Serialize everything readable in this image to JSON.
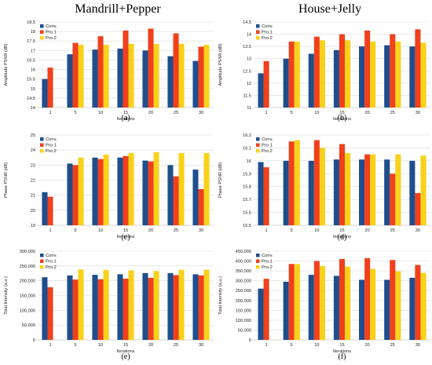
{
  "figure": {
    "columns": [
      "Mandrill+Pepper",
      "House+Jelly"
    ]
  },
  "colors": {
    "Conv.": "#1f4e8c",
    "Pro.1": "#f0401c",
    "Pro.2": "#f9d11a"
  },
  "chart_data": [
    {
      "type": "bar",
      "panel": "(a)",
      "categories": [
        "1",
        "5",
        "10",
        "15",
        "20",
        "25",
        "30"
      ],
      "xlabel": "Iterations",
      "ylabel": "Amplitude PSNR (dB)",
      "ylim": [
        14,
        18.5
      ],
      "yticks": [
        "14",
        "14.5",
        "15",
        "15.5",
        "16",
        "16.5",
        "17",
        "17.5",
        "18",
        "18.5"
      ],
      "grid": true,
      "legend": "top-left",
      "series": [
        {
          "name": "Conv.",
          "values": [
            15.5,
            16.8,
            17.05,
            17.1,
            17.0,
            16.7,
            16.45
          ]
        },
        {
          "name": "Pro.1",
          "values": [
            16.1,
            17.4,
            17.75,
            18.05,
            18.15,
            17.9,
            17.2
          ]
        },
        {
          "name": "Pro.2",
          "values": [
            null,
            17.3,
            17.3,
            17.35,
            17.35,
            17.35,
            17.3
          ]
        }
      ]
    },
    {
      "type": "bar",
      "panel": "(b)",
      "categories": [
        "1",
        "5",
        "10",
        "15",
        "20",
        "25",
        "30"
      ],
      "xlabel": "Iterations",
      "ylabel": "Amplitude PSNR (dB)",
      "ylim": [
        11,
        14.5
      ],
      "yticks": [
        "11",
        "11.5",
        "12",
        "12.5",
        "13",
        "13.5",
        "14",
        "14.5"
      ],
      "grid": true,
      "legend": "top-left",
      "series": [
        {
          "name": "Conv.",
          "values": [
            12.4,
            13.0,
            13.2,
            13.35,
            13.5,
            13.55,
            13.5
          ]
        },
        {
          "name": "Pro.1",
          "values": [
            12.9,
            13.7,
            13.9,
            14.0,
            14.15,
            14.0,
            14.2
          ]
        },
        {
          "name": "Pro.2",
          "values": [
            null,
            13.7,
            13.75,
            13.75,
            13.7,
            13.7,
            13.65
          ]
        }
      ]
    },
    {
      "type": "bar",
      "panel": "(c)",
      "categories": [
        "1",
        "5",
        "10",
        "15",
        "20",
        "25",
        "30"
      ],
      "xlabel": "Iterations",
      "ylabel": "Phase PSNR (dB)",
      "ylim": [
        19,
        25
      ],
      "yticks": [
        "19",
        "20",
        "21",
        "22",
        "23",
        "24",
        "25"
      ],
      "grid": true,
      "legend": "top-left",
      "series": [
        {
          "name": "Conv.",
          "values": [
            21.2,
            23.1,
            23.5,
            23.5,
            23.3,
            23.0,
            22.7
          ]
        },
        {
          "name": "Pro.1",
          "values": [
            20.9,
            23.0,
            23.4,
            23.6,
            23.25,
            22.25,
            21.4
          ]
        },
        {
          "name": "Pro.2",
          "values": [
            null,
            23.5,
            23.7,
            23.8,
            23.85,
            23.8,
            23.8
          ]
        }
      ]
    },
    {
      "type": "bar",
      "panel": "(d)",
      "categories": [
        "1",
        "5",
        "10",
        "15",
        "20",
        "25",
        "30"
      ],
      "xlabel": "Iterations",
      "ylabel": "Phase PSNR (dB)",
      "ylim": [
        15.5,
        16.2
      ],
      "yticks": [
        "15.5",
        "15.6",
        "15.7",
        "15.8",
        "15.9",
        "16",
        "16.1",
        "16.2"
      ],
      "grid": true,
      "legend": "top-left",
      "series": [
        {
          "name": "Conv.",
          "values": [
            15.99,
            16.0,
            16.0,
            16.01,
            16.01,
            16.01,
            16.0
          ]
        },
        {
          "name": "Pro.1",
          "values": [
            15.95,
            16.15,
            16.16,
            16.13,
            16.05,
            15.9,
            15.75
          ]
        },
        {
          "name": "Pro.2",
          "values": [
            null,
            16.16,
            16.1,
            16.06,
            16.05,
            16.05,
            16.04
          ]
        }
      ]
    },
    {
      "type": "bar",
      "panel": "(e)",
      "categories": [
        "1",
        "5",
        "10",
        "15",
        "20",
        "25",
        "30"
      ],
      "xlabel": "Iterations",
      "ylabel": "Total Intensity (a.u.)",
      "ylim": [
        0,
        300000
      ],
      "yticks": [
        "0",
        "50,000",
        "100,000",
        "150,000",
        "200,000",
        "250,000",
        "300,000"
      ],
      "grid": true,
      "legend": "top-left",
      "series": [
        {
          "name": "Conv.",
          "values": [
            212000,
            218000,
            220000,
            222000,
            226000,
            226000,
            222000
          ]
        },
        {
          "name": "Pro.1",
          "values": [
            178000,
            204000,
            205000,
            207000,
            210000,
            219000,
            218000
          ]
        },
        {
          "name": "Pro.2",
          "values": [
            null,
            238000,
            236000,
            235000,
            233000,
            237000,
            237000
          ]
        }
      ]
    },
    {
      "type": "bar",
      "panel": "(f)",
      "categories": [
        "1",
        "5",
        "10",
        "15",
        "20",
        "25",
        "30"
      ],
      "xlabel": "Iterations",
      "ylabel": "Total Intensity (a.u.)",
      "ylim": [
        0,
        450000
      ],
      "yticks": [
        "0",
        "50,000",
        "100,000",
        "150,000",
        "200,000",
        "250,000",
        "300,000",
        "350,000",
        "400,000",
        "450,000"
      ],
      "grid": true,
      "legend": "top-left",
      "series": [
        {
          "name": "Conv.",
          "values": [
            260000,
            295000,
            330000,
            325000,
            305000,
            305000,
            315000
          ]
        },
        {
          "name": "Pro.1",
          "values": [
            310000,
            385000,
            400000,
            410000,
            415000,
            405000,
            380000
          ]
        },
        {
          "name": "Pro.2",
          "values": [
            null,
            385000,
            375000,
            372000,
            360000,
            348000,
            340000
          ]
        }
      ]
    }
  ]
}
